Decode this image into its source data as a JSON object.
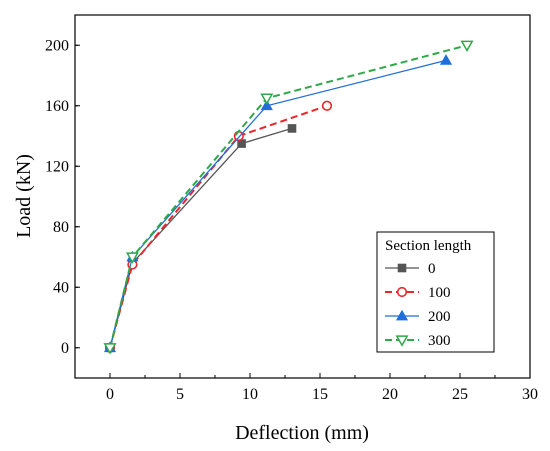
{
  "chart_data": {
    "type": "line",
    "xlabel": "Deflection (mm)",
    "ylabel": "Load (kN)",
    "xlim": [
      -2.5,
      30
    ],
    "ylim": [
      -20,
      220
    ],
    "xticks": [
      0,
      5,
      10,
      15,
      20,
      25,
      30
    ],
    "yticks": [
      0,
      40,
      80,
      120,
      160,
      200
    ],
    "grid": false,
    "legend": {
      "title": "Section length",
      "placement": "bottom-right"
    },
    "series": [
      {
        "name": "0",
        "color": "#555555",
        "line_style": "solid",
        "marker": "square-filled",
        "x": [
          0,
          1.6,
          9.4,
          13.0
        ],
        "y": [
          0,
          56,
          135,
          145
        ]
      },
      {
        "name": "100",
        "color": "#e8262b",
        "line_style": "dashed",
        "marker": "circle-open",
        "x": [
          0,
          1.6,
          9.2,
          15.5
        ],
        "y": [
          0,
          55,
          140,
          160
        ]
      },
      {
        "name": "200",
        "color": "#1f6fdb",
        "line_style": "solid",
        "marker": "triangle-up-filled",
        "x": [
          0,
          1.6,
          11.2,
          24.0
        ],
        "y": [
          0,
          60,
          160,
          190
        ]
      },
      {
        "name": "300",
        "color": "#2fa84a",
        "line_style": "dashed",
        "marker": "triangle-down-open",
        "x": [
          0,
          1.6,
          11.2,
          25.5
        ],
        "y": [
          0,
          60,
          165,
          200
        ]
      }
    ]
  }
}
